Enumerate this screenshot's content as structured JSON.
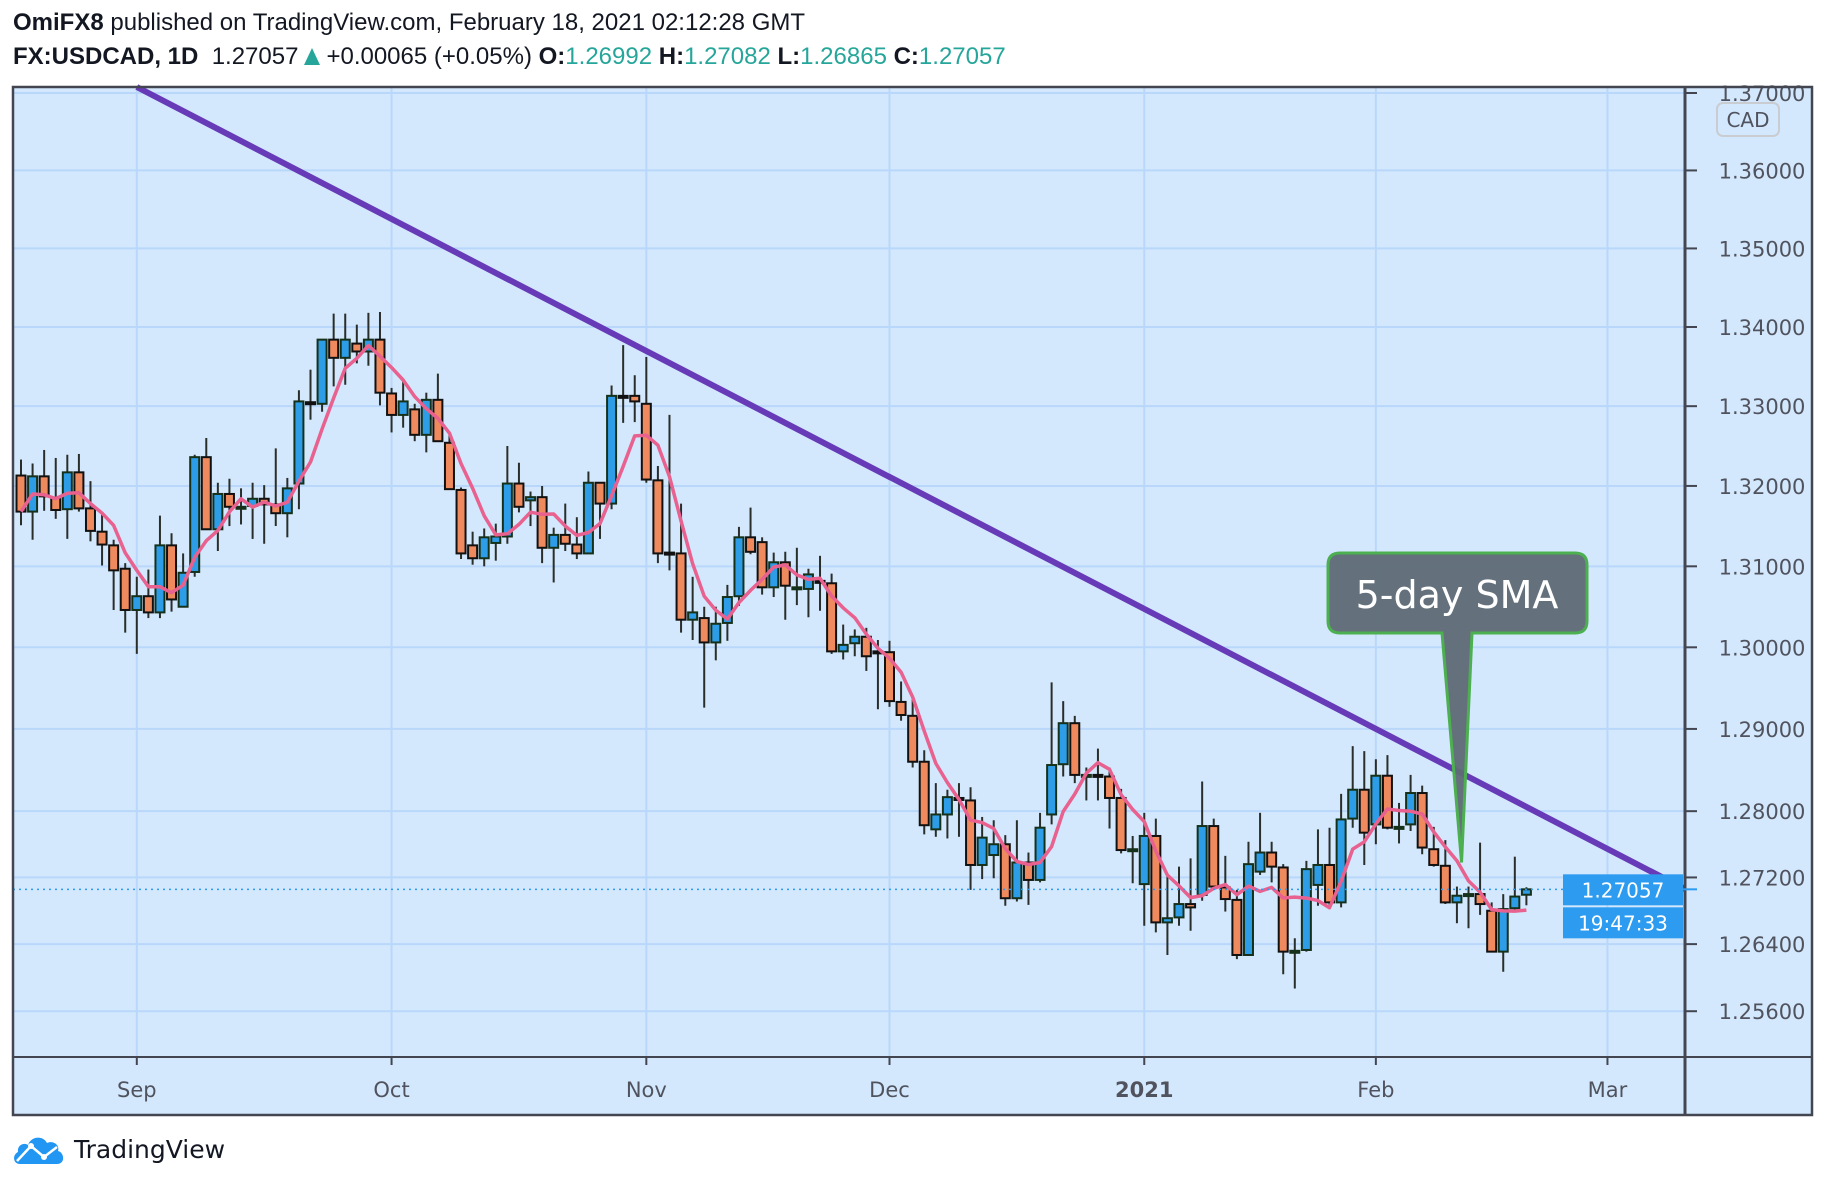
{
  "header": {
    "author": "OmiFX8",
    "published_text": "published on TradingView.com, February 18, 2021 02:12:28 GMT",
    "symbol": "FX:USDCAD, 1D",
    "last_price": "1.27057",
    "change": "+0.00065 (+0.05%)",
    "open_label": "O:",
    "open": "1.26992",
    "high_label": "H:",
    "high": "1.27082",
    "low_label": "L:",
    "low": "1.26865",
    "close_label": "C:",
    "close": "1.27057",
    "direction_icon": "triangle-up-icon"
  },
  "footer": {
    "brand": "TradingView",
    "logo_icon": "tradingview-cloud-logo"
  },
  "colors": {
    "background": "#d3e8fd",
    "up_candle": "#2e9de8",
    "down_candle": "#ee8a5e",
    "candle_border": "#1b2b1b",
    "sma": "#e8618f",
    "trendline": "#673ab7",
    "price_label": "#2d9bef",
    "change_positive": "#26a69a",
    "callout_fill": "#5f6c77",
    "callout_border": "#4caf50"
  },
  "chart_data": {
    "type": "candlestick",
    "symbol": "FX:USDCAD",
    "interval": "1D",
    "currency_badge": "CAD",
    "y_scale": "log",
    "ylim": [
      1.2525,
      1.3717
    ],
    "grid": true,
    "y_ticks": [
      "1.37000",
      "1.36000",
      "1.35000",
      "1.34000",
      "1.33000",
      "1.32000",
      "1.31000",
      "1.30000",
      "1.29000",
      "1.28000",
      "1.27200",
      "1.26400",
      "1.25600"
    ],
    "x_ticks": [
      {
        "label": "Sep",
        "bar": 10
      },
      {
        "label": "Oct",
        "bar": 32
      },
      {
        "label": "Nov",
        "bar": 54
      },
      {
        "label": "Dec",
        "bar": 75
      },
      {
        "label": "2021",
        "bar": 97,
        "bold": true
      },
      {
        "label": "Feb",
        "bar": 117
      },
      {
        "label": "Mar",
        "bar": 137
      }
    ],
    "candle_fields": [
      "open",
      "high",
      "low",
      "close"
    ],
    "candles": [
      [
        1.3213,
        1.3233,
        1.3151,
        1.3168
      ],
      [
        1.3168,
        1.3228,
        1.3133,
        1.3212
      ],
      [
        1.3212,
        1.3245,
        1.3169,
        1.3187
      ],
      [
        1.3185,
        1.3235,
        1.3159,
        1.317
      ],
      [
        1.3171,
        1.3239,
        1.3134,
        1.3217
      ],
      [
        1.3217,
        1.324,
        1.3168,
        1.3172
      ],
      [
        1.3172,
        1.3206,
        1.3131,
        1.3144
      ],
      [
        1.3143,
        1.3167,
        1.3101,
        1.3127
      ],
      [
        1.3126,
        1.3133,
        1.3046,
        1.3095
      ],
      [
        1.3097,
        1.3104,
        1.3018,
        1.3046
      ],
      [
        1.3046,
        1.3087,
        1.2992,
        1.3063
      ],
      [
        1.3063,
        1.3096,
        1.3036,
        1.3043
      ],
      [
        1.3043,
        1.3163,
        1.3036,
        1.3126
      ],
      [
        1.3126,
        1.3141,
        1.3044,
        1.3059
      ],
      [
        1.305,
        1.3116,
        1.305,
        1.3092
      ],
      [
        1.3093,
        1.3239,
        1.3087,
        1.3236
      ],
      [
        1.3236,
        1.326,
        1.3146,
        1.3146
      ],
      [
        1.3146,
        1.3204,
        1.3119,
        1.319
      ],
      [
        1.319,
        1.3209,
        1.315,
        1.3174
      ],
      [
        1.3174,
        1.3197,
        1.3152,
        1.3174
      ],
      [
        1.3175,
        1.3204,
        1.3134,
        1.3184
      ],
      [
        1.3184,
        1.3201,
        1.3128,
        1.3177
      ],
      [
        1.3177,
        1.3247,
        1.315,
        1.3166
      ],
      [
        1.3166,
        1.321,
        1.3136,
        1.3197
      ],
      [
        1.3203,
        1.332,
        1.3171,
        1.3306
      ],
      [
        1.3305,
        1.3346,
        1.3283,
        1.3304
      ],
      [
        1.3303,
        1.3384,
        1.3293,
        1.3384
      ],
      [
        1.3384,
        1.3417,
        1.3325,
        1.3361
      ],
      [
        1.3361,
        1.3417,
        1.3327,
        1.3384
      ],
      [
        1.3379,
        1.3403,
        1.3354,
        1.3369
      ],
      [
        1.3369,
        1.3418,
        1.3351,
        1.3384
      ],
      [
        1.3384,
        1.3419,
        1.3301,
        1.3317
      ],
      [
        1.3316,
        1.3323,
        1.3267,
        1.3289
      ],
      [
        1.3289,
        1.3332,
        1.3273,
        1.3306
      ],
      [
        1.3296,
        1.3303,
        1.3256,
        1.3264
      ],
      [
        1.3264,
        1.3317,
        1.3242,
        1.3308
      ],
      [
        1.3308,
        1.3341,
        1.3255,
        1.3256
      ],
      [
        1.3254,
        1.3267,
        1.3195,
        1.3196
      ],
      [
        1.3195,
        1.3198,
        1.3109,
        1.3116
      ],
      [
        1.3126,
        1.3143,
        1.3102,
        1.311
      ],
      [
        1.311,
        1.3147,
        1.31,
        1.3136
      ],
      [
        1.3129,
        1.3153,
        1.3107,
        1.3137
      ],
      [
        1.3137,
        1.325,
        1.3128,
        1.3203
      ],
      [
        1.3203,
        1.3229,
        1.3167,
        1.3174
      ],
      [
        1.3182,
        1.3193,
        1.315,
        1.3186
      ],
      [
        1.3186,
        1.32,
        1.3104,
        1.3123
      ],
      [
        1.3123,
        1.3148,
        1.308,
        1.3139
      ],
      [
        1.3139,
        1.3178,
        1.3119,
        1.3128
      ],
      [
        1.3127,
        1.3161,
        1.3109,
        1.3116
      ],
      [
        1.3116,
        1.3218,
        1.3116,
        1.3204
      ],
      [
        1.3204,
        1.3204,
        1.3134,
        1.3178
      ],
      [
        1.3178,
        1.3326,
        1.3171,
        1.3313
      ],
      [
        1.3313,
        1.3377,
        1.3279,
        1.3312
      ],
      [
        1.3313,
        1.3339,
        1.328,
        1.3306
      ],
      [
        1.3303,
        1.3362,
        1.3204,
        1.3208
      ],
      [
        1.3207,
        1.3225,
        1.3104,
        1.3116
      ],
      [
        1.3117,
        1.3289,
        1.3095,
        1.3116
      ],
      [
        1.3116,
        1.3178,
        1.3018,
        1.3034
      ],
      [
        1.3034,
        1.3087,
        1.3009,
        1.3043
      ],
      [
        1.3036,
        1.305,
        1.2926,
        1.3006
      ],
      [
        1.3006,
        1.305,
        1.2984,
        1.3029
      ],
      [
        1.303,
        1.3077,
        1.3008,
        1.3062
      ],
      [
        1.3063,
        1.3149,
        1.3051,
        1.3136
      ],
      [
        1.3136,
        1.3173,
        1.3115,
        1.3118
      ],
      [
        1.313,
        1.3136,
        1.3065,
        1.3074
      ],
      [
        1.3074,
        1.3117,
        1.3062,
        1.3105
      ],
      [
        1.3105,
        1.3118,
        1.3034,
        1.3076
      ],
      [
        1.3074,
        1.3123,
        1.3052,
        1.3074
      ],
      [
        1.3072,
        1.3097,
        1.3037,
        1.309
      ],
      [
        1.3082,
        1.3113,
        1.3045,
        1.3081
      ],
      [
        1.3079,
        1.3091,
        1.2992,
        1.2995
      ],
      [
        1.2995,
        1.3028,
        1.2985,
        1.3003
      ],
      [
        1.3005,
        1.3022,
        1.2989,
        1.3013
      ],
      [
        1.3013,
        1.3024,
        1.2971,
        1.2989
      ],
      [
        1.2995,
        1.3009,
        1.2924,
        1.2994
      ],
      [
        1.2994,
        1.3008,
        1.2927,
        1.2934
      ],
      [
        1.2933,
        1.2958,
        1.291,
        1.2917
      ],
      [
        1.2916,
        1.2941,
        1.2853,
        1.286
      ],
      [
        1.286,
        1.2874,
        1.2772,
        1.2783
      ],
      [
        1.2778,
        1.2834,
        1.2769,
        1.2796
      ],
      [
        1.2796,
        1.2826,
        1.2767,
        1.2817
      ],
      [
        1.2816,
        1.2834,
        1.2769,
        1.2815
      ],
      [
        1.2813,
        1.2829,
        1.2705,
        1.2735
      ],
      [
        1.2735,
        1.2793,
        1.2718,
        1.2768
      ],
      [
        1.2747,
        1.2789,
        1.2719,
        1.276
      ],
      [
        1.276,
        1.2771,
        1.2686,
        1.2695
      ],
      [
        1.2695,
        1.2789,
        1.2691,
        1.2738
      ],
      [
        1.2738,
        1.275,
        1.2687,
        1.2717
      ],
      [
        1.2717,
        1.2798,
        1.2714,
        1.278
      ],
      [
        1.2796,
        1.2957,
        1.2784,
        1.2856
      ],
      [
        1.2857,
        1.2934,
        1.2842,
        1.2907
      ],
      [
        1.2907,
        1.2916,
        1.2834,
        1.2844
      ],
      [
        1.2844,
        1.2853,
        1.2813,
        1.2844
      ],
      [
        1.2844,
        1.2876,
        1.2813,
        1.2843
      ],
      [
        1.2842,
        1.2853,
        1.2779,
        1.2816
      ],
      [
        1.2816,
        1.2827,
        1.2749,
        1.2753
      ],
      [
        1.2754,
        1.277,
        1.2713,
        1.2754
      ],
      [
        1.2712,
        1.2798,
        1.2662,
        1.277
      ],
      [
        1.277,
        1.2791,
        1.2654,
        1.2666
      ],
      [
        1.2666,
        1.2723,
        1.2627,
        1.2671
      ],
      [
        1.2672,
        1.2733,
        1.2662,
        1.2688
      ],
      [
        1.2688,
        1.2743,
        1.2656,
        1.2684
      ],
      [
        1.2699,
        1.2836,
        1.2692,
        1.2782
      ],
      [
        1.2782,
        1.2791,
        1.2709,
        1.2709
      ],
      [
        1.2708,
        1.2746,
        1.2679,
        1.2694
      ],
      [
        1.2693,
        1.2705,
        1.2622,
        1.2627
      ],
      [
        1.2627,
        1.2763,
        1.2627,
        1.2736
      ],
      [
        1.2727,
        1.2798,
        1.2723,
        1.275
      ],
      [
        1.275,
        1.2763,
        1.2714,
        1.2733
      ],
      [
        1.2732,
        1.2736,
        1.2604,
        1.2631
      ],
      [
        1.2632,
        1.2647,
        1.2587,
        1.2632
      ],
      [
        1.2633,
        1.274,
        1.2631,
        1.273
      ],
      [
        1.2711,
        1.2778,
        1.2686,
        1.2735
      ],
      [
        1.2735,
        1.278,
        1.2687,
        1.269
      ],
      [
        1.269,
        1.2821,
        1.2684,
        1.279
      ],
      [
        1.2791,
        1.2879,
        1.278,
        1.2826
      ],
      [
        1.2826,
        1.2873,
        1.2735,
        1.2774
      ],
      [
        1.2784,
        1.2863,
        1.276,
        1.2843
      ],
      [
        1.2843,
        1.2868,
        1.2778,
        1.278
      ],
      [
        1.2781,
        1.281,
        1.2761,
        1.2781
      ],
      [
        1.2784,
        1.2844,
        1.2776,
        1.2822
      ],
      [
        1.2822,
        1.2831,
        1.2748,
        1.2756
      ],
      [
        1.2754,
        1.2781,
        1.2733,
        1.2735
      ],
      [
        1.2734,
        1.2765,
        1.2688,
        1.269
      ],
      [
        1.269,
        1.2709,
        1.2665,
        1.2698
      ],
      [
        1.27,
        1.2709,
        1.2659,
        1.27
      ],
      [
        1.27,
        1.2762,
        1.2675,
        1.2688
      ],
      [
        1.268,
        1.269,
        1.263,
        1.2631
      ],
      [
        1.2631,
        1.27,
        1.2607,
        1.2682
      ],
      [
        1.2683,
        1.2745,
        1.268,
        1.2697
      ],
      [
        1.26992,
        1.27082,
        1.26865,
        1.27057
      ]
    ],
    "sma": {
      "period": 5,
      "source": "close"
    },
    "trendline": {
      "start": {
        "bar": 10,
        "price": 1.371
      },
      "end": {
        "bar": 143.7,
        "price": 1.2706
      }
    },
    "current_price": {
      "value": 1.27057,
      "label": "1.27057",
      "countdown": "19:47:33"
    },
    "annotation": {
      "text": "5-day SMA",
      "target_bar": 124.4,
      "target_price": 1.2738
    }
  }
}
